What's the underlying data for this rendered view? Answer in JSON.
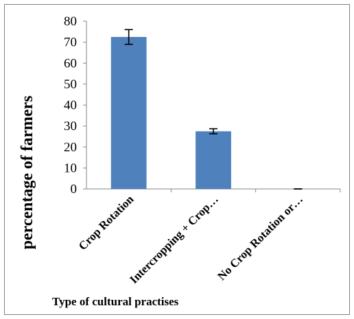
{
  "chart_data": {
    "type": "bar",
    "title": "",
    "xlabel": "Type of cultural practises",
    "ylabel": "percentage of farmers",
    "categories": [
      "Crop Rotation",
      "Intercropping + Crop…",
      "No Crop Rotation or…"
    ],
    "values": [
      72.5,
      27.5,
      0
    ],
    "errors": [
      3.5,
      1.2,
      0
    ],
    "ylim": [
      0,
      80
    ],
    "yticks": [
      0,
      10,
      20,
      30,
      40,
      50,
      60,
      70,
      80
    ],
    "grid": false,
    "legend": "none",
    "bar_color": "#4f81bd"
  }
}
